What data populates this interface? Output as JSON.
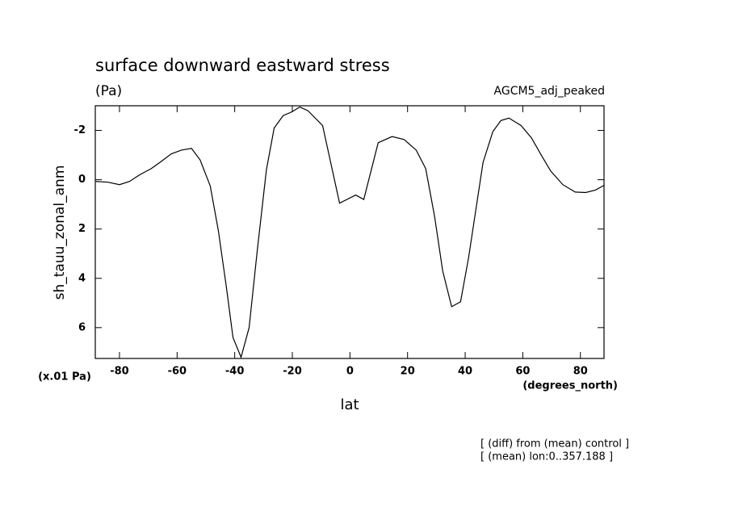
{
  "chart_data": {
    "type": "line",
    "title": "surface downward eastward stress",
    "subtitle": "(Pa)",
    "annotation": "AGCM5_adj_peaked",
    "ylabel": "sh_tauu_zonal_anm",
    "yunits": "(x.01 Pa)",
    "xunits": "(degrees_north)",
    "xlabel": "lat",
    "notes": [
      "[ (diff) from (mean) control ]",
      "[ (mean) lon:0..357.188 ]"
    ],
    "color": "#000000",
    "x": [
      -88.2,
      -84,
      -80,
      -76.5,
      -73,
      -69,
      -66,
      -62,
      -58.5,
      -55,
      -52,
      -48.5,
      -45.7,
      -42.9,
      -40.6,
      -37.8,
      -35,
      -32.2,
      -29,
      -26.3,
      -23.2,
      -20.2,
      -17.4,
      -14.6,
      -9.5,
      -3.6,
      2,
      4.8,
      9.8,
      14.6,
      18.8,
      23,
      26.3,
      29.4,
      32.2,
      35.3,
      38.4,
      41.2,
      46.2,
      49.6,
      52.4,
      55.2,
      59.4,
      63,
      66.4,
      69.7,
      73.9,
      78.2,
      81.8,
      85.2,
      88.2
    ],
    "values": [
      0.07,
      0.1,
      0.2,
      0.07,
      -0.2,
      -0.45,
      -0.7,
      -1.05,
      -1.2,
      -1.27,
      -0.8,
      0.25,
      2.05,
      4.35,
      6.4,
      7.2,
      6.0,
      2.9,
      -0.4,
      -2.1,
      -2.6,
      -2.75,
      -2.95,
      -2.8,
      -2.2,
      0.95,
      0.62,
      0.8,
      -1.5,
      -1.75,
      -1.63,
      -1.2,
      -0.45,
      1.5,
      3.7,
      5.15,
      4.95,
      3.15,
      -0.7,
      -1.95,
      -2.4,
      -2.5,
      -2.2,
      -1.7,
      -1.0,
      -0.35,
      0.2,
      0.5,
      0.52,
      0.42,
      0.23
    ],
    "xlim": [
      -88.4,
      88.2
    ],
    "xticks": [
      -80,
      -60,
      -40,
      -20,
      0,
      20,
      40,
      60,
      80
    ],
    "ylim": [
      7.25,
      -3.0
    ],
    "yticks": [
      -2,
      0,
      2,
      4,
      6
    ]
  }
}
